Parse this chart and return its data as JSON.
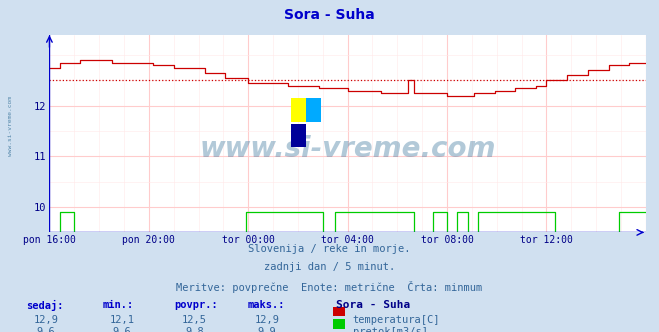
{
  "title": "Sora - Suha",
  "title_color": "#0000cc",
  "bg_color": "#d0e0f0",
  "plot_bg_color": "#ffffff",
  "grid_major_color": "#ffcccc",
  "grid_minor_color": "#ffe8e8",
  "xlabel_color": "#000088",
  "ylabel_color": "#000088",
  "x_tick_labels": [
    "pon 16:00",
    "pon 20:00",
    "tor 00:00",
    "tor 04:00",
    "tor 08:00",
    "tor 12:00"
  ],
  "y_ticks": [
    10,
    11,
    12
  ],
  "ylim": [
    9.5,
    13.4
  ],
  "xlim": [
    0,
    288
  ],
  "x_tick_positions": [
    0,
    48,
    96,
    144,
    192,
    240
  ],
  "temp_avg": 12.5,
  "temp_min": 12.1,
  "temp_max": 12.9,
  "temp_current": 12.9,
  "flow_avg": 9.8,
  "flow_min": 9.6,
  "flow_max": 9.9,
  "flow_current": 9.6,
  "temp_line_color": "#cc0000",
  "flow_line_color": "#00cc00",
  "avg_line_color": "#cc0000",
  "axis_color": "#0000cc",
  "watermark_color": "#5588aa",
  "subtitle1": "Slovenija / reke in morje.",
  "subtitle2": "zadnji dan / 5 minut.",
  "subtitle3": "Meritve: povprečne  Enote: metrične  Črta: minmum",
  "subtitle_color": "#336699",
  "legend_title": "Sora - Suha",
  "legend_title_color": "#000088",
  "legend_color": "#336699",
  "stat_label_color": "#0000cc",
  "stat_value_color": "#336699"
}
